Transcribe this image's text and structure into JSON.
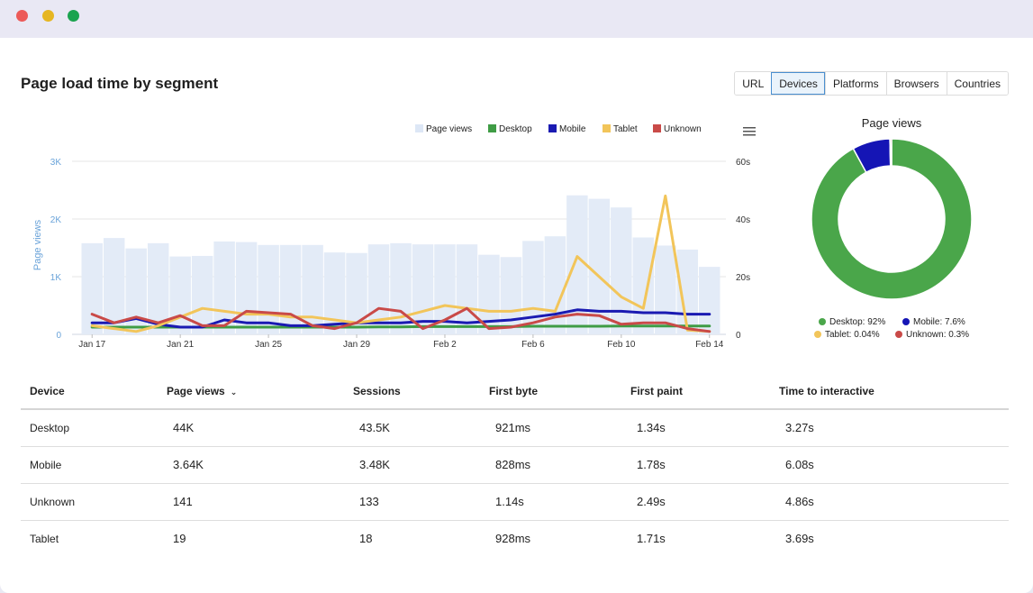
{
  "window": {
    "controls": [
      "close",
      "minimize",
      "maximize"
    ]
  },
  "header": {
    "title": "Page load time by segment"
  },
  "segments": {
    "items": [
      "URL",
      "Devices",
      "Platforms",
      "Browsers",
      "Countries"
    ],
    "active": "Devices"
  },
  "chart_data": [
    {
      "type": "bar+line",
      "legend": [
        "Page views",
        "Desktop",
        "Mobile",
        "Tablet",
        "Unknown"
      ],
      "legend_position": "top-right",
      "left_axis": {
        "label": "Page views",
        "ticks": [
          "0",
          "1K",
          "2K",
          "3K"
        ],
        "range": [
          0,
          3000
        ]
      },
      "right_axis": {
        "ticks": [
          "0",
          "20s",
          "40s",
          "60s"
        ],
        "range": [
          0,
          60
        ]
      },
      "x_ticks": [
        "Jan 17",
        "Jan 21",
        "Jan 25",
        "Jan 29",
        "Feb 2",
        "Feb 6",
        "Feb 10",
        "Feb 14"
      ],
      "page_views": [
        1580,
        1670,
        1490,
        1580,
        1350,
        1360,
        1610,
        1600,
        1550,
        1550,
        1550,
        1420,
        1410,
        1560,
        1580,
        1560,
        1560,
        1560,
        1380,
        1340,
        1620,
        1700,
        2410,
        2350,
        2200,
        1680,
        1540,
        1470,
        1170
      ],
      "series": [
        {
          "name": "Desktop",
          "color": "#3f9c45",
          "values": [
            2.5,
            2.5,
            2.5,
            2.5,
            2.5,
            2.5,
            2.5,
            2.5,
            2.5,
            2.5,
            2.5,
            2.5,
            2.5,
            2.6,
            2.6,
            2.7,
            2.7,
            2.7,
            2.7,
            2.7,
            2.8,
            2.8,
            2.8,
            2.8,
            2.9,
            2.9,
            2.9,
            2.9,
            2.9
          ]
        },
        {
          "name": "Mobile",
          "color": "#1a1ab2",
          "values": [
            4,
            4,
            5.5,
            3.5,
            2.5,
            2.5,
            5,
            4,
            4,
            3,
            3,
            3.5,
            4,
            4,
            4,
            4.5,
            4.5,
            4,
            4.5,
            5,
            6,
            7,
            8.5,
            8,
            8,
            7.5,
            7.5,
            7,
            7
          ]
        },
        {
          "name": "Tablet",
          "color": "#f2c55a",
          "values": [
            3,
            2,
            1,
            3,
            6,
            9,
            8,
            7,
            7,
            6,
            6,
            5,
            4,
            5,
            6,
            8,
            10,
            9,
            8,
            8,
            9,
            8,
            27,
            20,
            13,
            9,
            48,
            1.5,
            1
          ]
        },
        {
          "name": "Unknown",
          "color": "#c94a48",
          "values": [
            7,
            4,
            6,
            4,
            6.5,
            3,
            3,
            8,
            7.5,
            7,
            3,
            2,
            4,
            9,
            8,
            2,
            5,
            9,
            2,
            2.5,
            4,
            6,
            7,
            6.5,
            3.5,
            4,
            4,
            2,
            1
          ]
        }
      ]
    },
    {
      "type": "pie",
      "title": "Page views",
      "categories": [
        "Desktop",
        "Mobile",
        "Tablet",
        "Unknown"
      ],
      "values": [
        92,
        7.6,
        0.04,
        0.3
      ],
      "colors": [
        "#4aa64a",
        "#1515b5",
        "#f2c55a",
        "#c94a48"
      ],
      "legend": [
        "Desktop: 92%",
        "Mobile: 7.6%",
        "Tablet: 0.04%",
        "Unknown: 0.3%"
      ]
    }
  ],
  "table": {
    "columns": [
      "Device",
      "Page views",
      "Sessions",
      "First byte",
      "First paint",
      "Time to interactive"
    ],
    "sort_indicator": "⌄",
    "rows": [
      [
        "Desktop",
        "44K",
        "43.5K",
        "921ms",
        "1.34s",
        "3.27s"
      ],
      [
        "Mobile",
        "3.64K",
        "3.48K",
        "828ms",
        "1.78s",
        "6.08s"
      ],
      [
        "Unknown",
        "141",
        "133",
        "1.14s",
        "2.49s",
        "4.86s"
      ],
      [
        "Tablet",
        "19",
        "18",
        "928ms",
        "1.71s",
        "3.69s"
      ]
    ]
  }
}
